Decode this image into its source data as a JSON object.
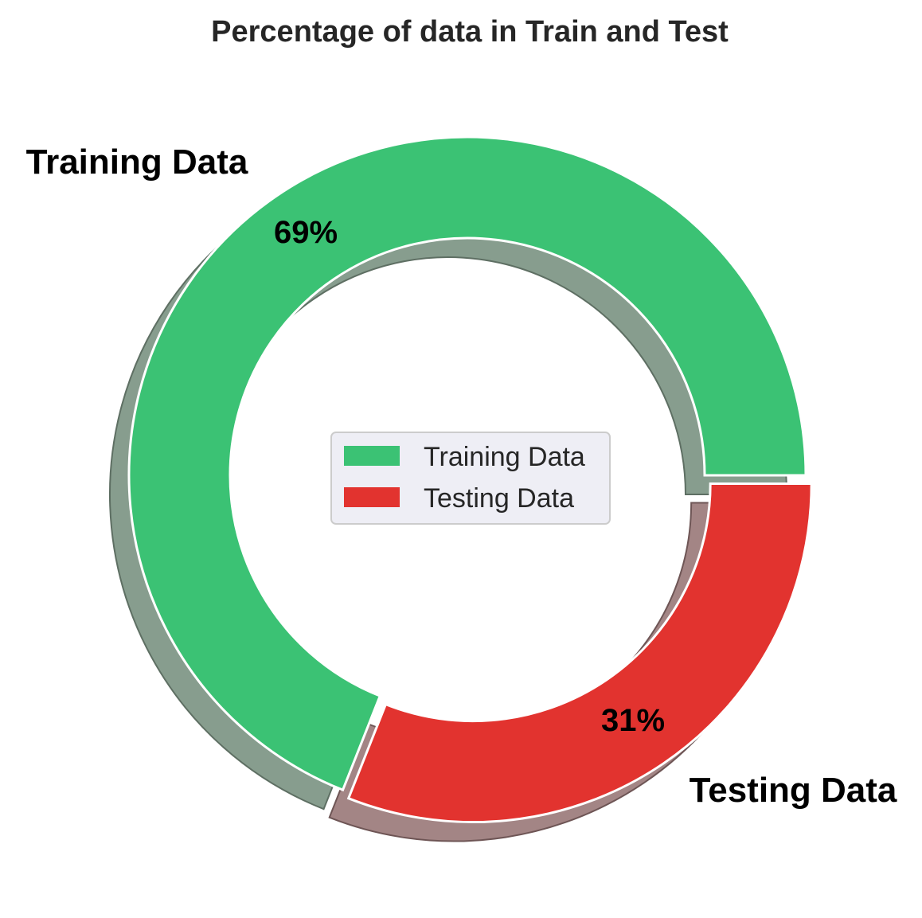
{
  "chart_data": {
    "type": "pie",
    "variant": "donut",
    "title": "Percentage of data in Train and Test",
    "slices": [
      {
        "label": "Training Data",
        "value": 69,
        "percent_label": "69%",
        "color": "#3bc274"
      },
      {
        "label": "Testing Data",
        "value": 31,
        "percent_label": "31%",
        "color": "#e2332f"
      }
    ],
    "start_angle_deg": 0,
    "direction": "counterclockwise",
    "explode": [
      0,
      0.03
    ],
    "shadow": true,
    "legend": {
      "placement": "center",
      "entries": [
        "Training Data",
        "Testing Data"
      ]
    }
  }
}
